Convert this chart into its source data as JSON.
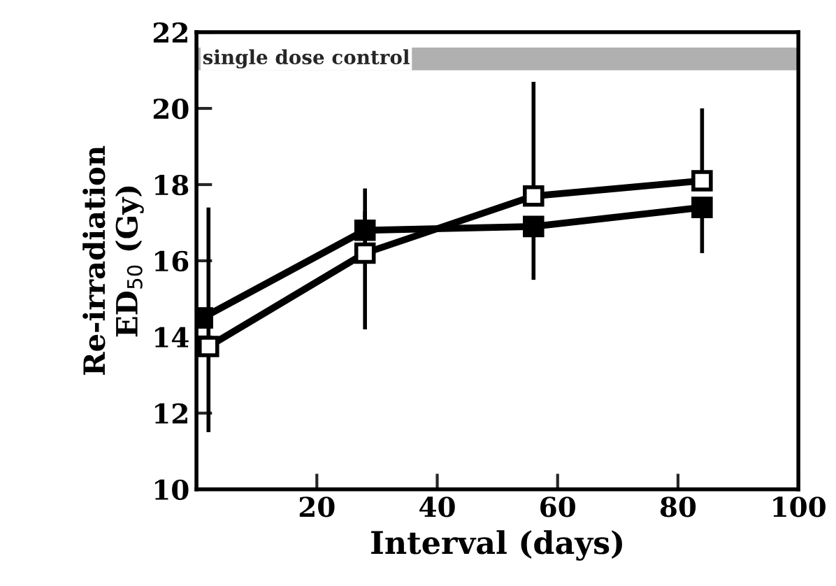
{
  "chart_data": {
    "type": "line",
    "xlabel": "Interval (days)",
    "ylabel": "Re-irradiation\nED$_{50}$ (Gy)",
    "xlim": [
      0,
      100
    ],
    "ylim": [
      10,
      22
    ],
    "xticks": [
      20,
      40,
      60,
      80,
      100
    ],
    "yticks": [
      10,
      12,
      14,
      16,
      18,
      20,
      22
    ],
    "grid": false,
    "legend": false,
    "marker": "square",
    "line_style": "solid",
    "bands": [
      {
        "axis": "y",
        "from": 21.0,
        "to": 21.6,
        "label": "single dose control",
        "color": "#b0b0b0"
      }
    ],
    "series": [
      {
        "color": "#000000",
        "x": [
          2,
          28,
          56,
          84
        ],
        "values": [
          13.75,
          16.2,
          17.7,
          18.1
        ],
        "errors": [
          [
            11.5,
            17.4
          ],
          [
            14.2,
            17.9
          ],
          [
            17.7,
            20.7
          ],
          [
            18.1,
            20.0
          ]
        ]
      },
      {
        "color": "#000000",
        "x": [
          1,
          28,
          56,
          84
        ],
        "values": [
          14.5,
          16.8,
          16.9,
          17.4
        ],
        "errors": [
          null,
          [
            16.8,
            17.3
          ],
          [
            15.5,
            16.9
          ],
          [
            16.2,
            17.4
          ]
        ]
      }
    ]
  }
}
